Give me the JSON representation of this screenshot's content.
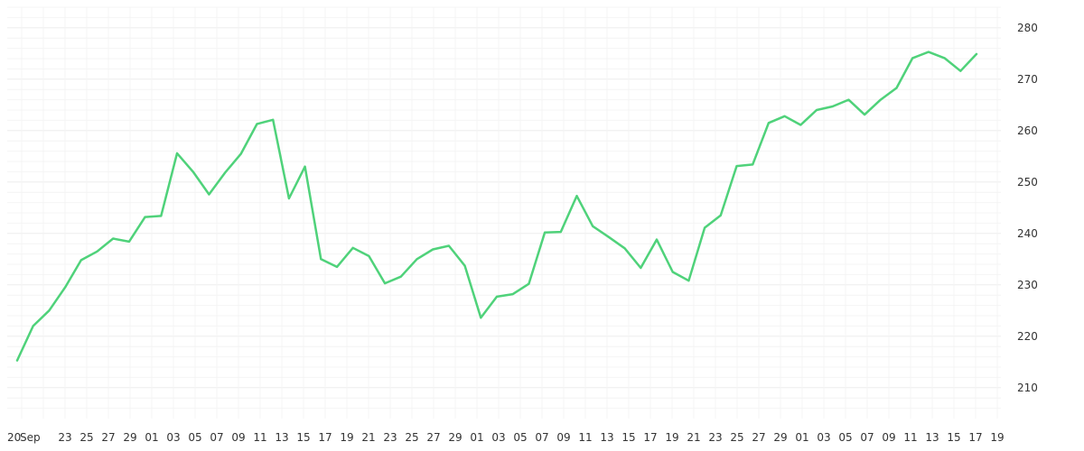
{
  "chart_data": {
    "type": "line",
    "title": "",
    "xlabel": "",
    "ylabel": "",
    "grid": true,
    "legend": "none",
    "y_axis_side": "right",
    "ylim": [
      204,
      284
    ],
    "y_ticks": [
      210,
      220,
      230,
      240,
      250,
      260,
      270,
      280
    ],
    "x_tick_labels": [
      "20",
      "Sep",
      "23",
      "25",
      "27",
      "29",
      "01",
      "03",
      "05",
      "07",
      "09",
      "11",
      "13",
      "15",
      "17",
      "19",
      "21",
      "23",
      "25",
      "27",
      "29",
      "01",
      "03",
      "05",
      "07",
      "09",
      "11",
      "13",
      "15",
      "17",
      "19",
      "21",
      "23",
      "25",
      "27",
      "29",
      "01",
      "03",
      "05",
      "07",
      "09",
      "11",
      "13",
      "15",
      "17",
      "19"
    ],
    "series": [
      {
        "color": "#4fd27a",
        "values": [
          215.3,
          222.0,
          225.0,
          229.5,
          234.8,
          236.5,
          239.0,
          238.4,
          243.2,
          243.4,
          255.6,
          252.0,
          247.6,
          251.8,
          255.5,
          261.3,
          262.1,
          246.8,
          253.0,
          235.0,
          233.5,
          237.2,
          235.6,
          230.3,
          231.6,
          235.0,
          236.9,
          237.6,
          233.7,
          223.6,
          227.7,
          228.2,
          230.2,
          240.2,
          240.3,
          247.3,
          241.4,
          239.3,
          237.1,
          233.3,
          238.8,
          232.5,
          230.8,
          241.1,
          243.5,
          253.1,
          253.4,
          261.5,
          262.8,
          261.1,
          264.0,
          264.7,
          266.0,
          263.1,
          266.0,
          268.3,
          274.1,
          275.3,
          274.1,
          271.6,
          274.9
        ]
      }
    ]
  }
}
